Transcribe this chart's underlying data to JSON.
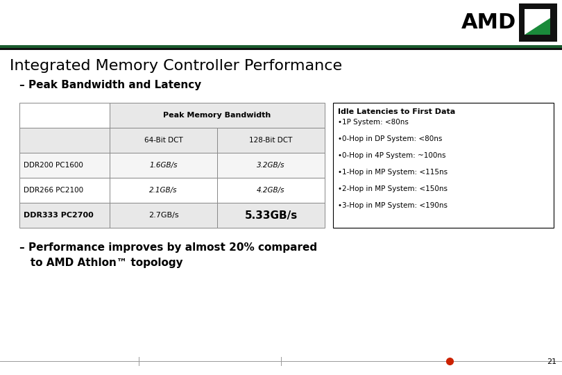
{
  "title": "Integrated Memory Controller Performance",
  "subtitle": "– Peak Bandwidth and Latency",
  "bg_color": "#ffffff",
  "top_bar_green": "#1a5c2e",
  "top_bar_black": "#1a1a1a",
  "table_header": "Peak Memory Bandwidth",
  "col1_header": "64-Bit DCT",
  "col2_header": "128-Bit DCT",
  "rows": [
    {
      "label": "DDR200 PC1600",
      "col1": "1.6GB/s",
      "col2": "3.2GB/s",
      "bold": false
    },
    {
      "label": "DDR266 PC2100",
      "col1": "2.1GB/s",
      "col2": "4.2GB/s",
      "bold": false
    },
    {
      "label": "DDR333 PC2700",
      "col1": "2.7GB/s",
      "col2": "5.33GB/s",
      "bold": true
    }
  ],
  "latency_title": "Idle Latencies to First Data",
  "latency_items": [
    "•1P System: <80ns",
    "•0-Hop in DP System: <80ns",
    "•0-Hop in 4P System: ~100ns",
    "•1-Hop in MP System: <115ns",
    "•2-Hop in MP System: <150ns",
    "•3-Hop in MP System: <190ns"
  ],
  "bottom_text1": "– Performance improves by almost 20% compared",
  "bottom_text2": "   to AMD Athlon™ topology",
  "page_number": "21",
  "footer_dot_color": "#cc2200",
  "table_border": "#888888",
  "table_header_bg": "#e8e8e8",
  "row_bg_even": "#f5f5f5",
  "row_bg_odd": "#ffffff",
  "row_bg_bold": "#e8e8e8"
}
